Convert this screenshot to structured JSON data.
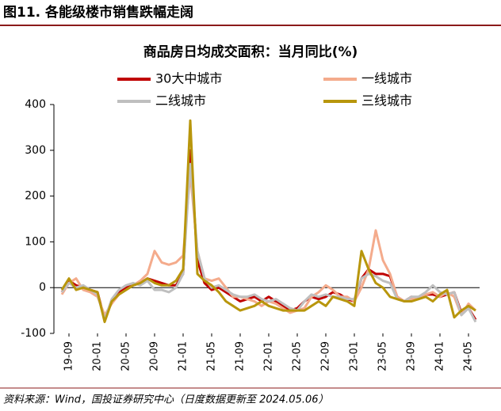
{
  "header": {
    "title": "图11. 各能级楼市销售跌幅走阔"
  },
  "chart_data": {
    "type": "line",
    "title": "商品房日均成交面积：当月同比(%)",
    "categories": [
      null,
      "19-09",
      null,
      null,
      null,
      "20-01",
      null,
      null,
      null,
      "20-05",
      null,
      null,
      null,
      "20-09",
      null,
      null,
      null,
      "21-01",
      null,
      null,
      null,
      "21-05",
      null,
      null,
      null,
      "21-09",
      null,
      null,
      null,
      "22-01",
      null,
      null,
      null,
      "22-05",
      null,
      null,
      null,
      "22-09",
      null,
      null,
      null,
      "23-01",
      null,
      null,
      null,
      "23-05",
      null,
      null,
      null,
      "23-09",
      null,
      null,
      null,
      "24-01",
      null,
      null,
      null,
      "24-05",
      null
    ],
    "series": [
      {
        "name": "30大中城市",
        "color": "#c00000",
        "values": [
          -10,
          15,
          5,
          0,
          -5,
          -10,
          -70,
          -30,
          -10,
          0,
          5,
          10,
          20,
          15,
          10,
          5,
          5,
          30,
          300,
          60,
          10,
          -5,
          0,
          -10,
          -20,
          -30,
          -25,
          -20,
          -30,
          -20,
          -30,
          -40,
          -50,
          -45,
          -30,
          -20,
          -25,
          -20,
          -10,
          -15,
          -25,
          -30,
          20,
          40,
          30,
          30,
          25,
          -20,
          -30,
          -20,
          -25,
          -15,
          -15,
          -20,
          -15,
          -10,
          -55,
          -45,
          -70
        ]
      },
      {
        "name": "一线城市",
        "color": "#f4ab8c",
        "values": [
          -15,
          10,
          20,
          -5,
          -10,
          -20,
          -60,
          -35,
          -15,
          -5,
          5,
          15,
          30,
          80,
          55,
          50,
          55,
          70,
          250,
          80,
          20,
          15,
          20,
          0,
          -20,
          -20,
          -25,
          -30,
          -40,
          -30,
          -35,
          -45,
          -55,
          -50,
          -45,
          -20,
          -10,
          5,
          -5,
          -20,
          -20,
          -30,
          0,
          40,
          125,
          60,
          30,
          -20,
          -30,
          -25,
          -20,
          -15,
          -10,
          -20,
          -10,
          -20,
          -60,
          -35,
          -50
        ]
      },
      {
        "name": "二线城市",
        "color": "#bfbfbf",
        "values": [
          -10,
          10,
          0,
          5,
          -5,
          -15,
          -70,
          -25,
          -5,
          5,
          10,
          5,
          15,
          -5,
          -5,
          -10,
          0,
          30,
          270,
          80,
          20,
          0,
          5,
          -5,
          -15,
          -20,
          -20,
          -15,
          -25,
          -30,
          -25,
          -35,
          -45,
          -50,
          -30,
          -15,
          -20,
          -15,
          -20,
          -20,
          -25,
          -25,
          20,
          30,
          25,
          15,
          10,
          -25,
          -30,
          -20,
          -20,
          -10,
          5,
          -10,
          -15,
          -10,
          -60,
          -45,
          -75
        ]
      },
      {
        "name": "三线城市",
        "color": "#b8960c",
        "values": [
          -5,
          20,
          -5,
          0,
          -5,
          -10,
          -75,
          -30,
          -15,
          -5,
          5,
          10,
          20,
          10,
          5,
          5,
          15,
          40,
          365,
          30,
          15,
          5,
          -10,
          -30,
          -40,
          -50,
          -45,
          -40,
          -30,
          -40,
          -45,
          -50,
          -50,
          -50,
          -50,
          -40,
          -30,
          -40,
          -20,
          -25,
          -30,
          -40,
          80,
          40,
          10,
          0,
          -20,
          -25,
          -30,
          -30,
          -25,
          -20,
          -30,
          -15,
          -5,
          -65,
          -50,
          -40,
          -50
        ]
      }
    ],
    "ylim": [
      -100,
      400
    ],
    "yticks": [
      -100,
      0,
      100,
      200,
      300,
      400
    ]
  },
  "footer": {
    "source": "资料来源：Wind，国投证券研究中心（日度数据更新至 2024.05.06）"
  }
}
